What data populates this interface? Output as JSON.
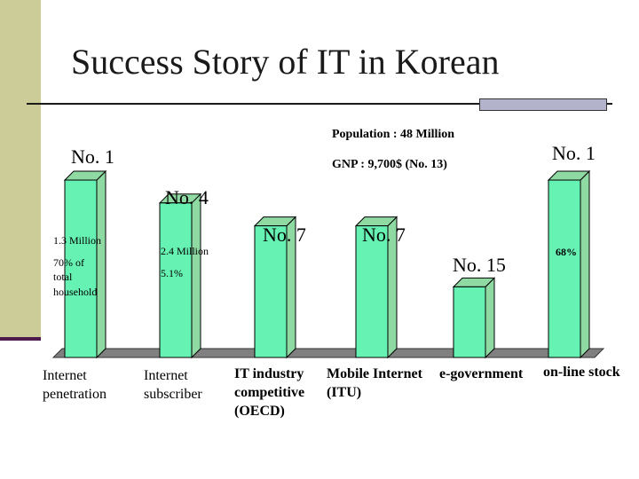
{
  "slide": {
    "title": "Success Story of IT in Korean"
  },
  "chart_data": {
    "type": "bar",
    "categories": [
      [
        "Internet",
        "penetration"
      ],
      [
        "Internet",
        "subscriber"
      ],
      [
        "IT industry",
        "competitive",
        "(OECD)"
      ],
      [
        "Mobile Internet",
        "(ITU)"
      ],
      [
        "e-government"
      ],
      [
        "on-line stock"
      ]
    ],
    "values": [
      1,
      4,
      7,
      7,
      15,
      1
    ],
    "rank_labels": [
      "No. 1",
      "No. 4",
      "No. 7",
      "No. 7",
      "No. 15",
      "No. 1"
    ],
    "bar_notes": [
      [
        "1.3 Million",
        "70% of",
        "total",
        "household"
      ],
      [
        "2.4 Million",
        "5.1%"
      ],
      [],
      [],
      [],
      [
        "68%"
      ]
    ],
    "annotations": [
      "Population : 48 Million",
      "GNP : 9,700$ (No. 13)"
    ],
    "colors": {
      "bar_front": "#66f2b3",
      "bar_side": "#8fd9a3",
      "bar_outline": "#000000",
      "floor": "#808080"
    },
    "title": "",
    "xlabel": "",
    "ylabel": ""
  }
}
